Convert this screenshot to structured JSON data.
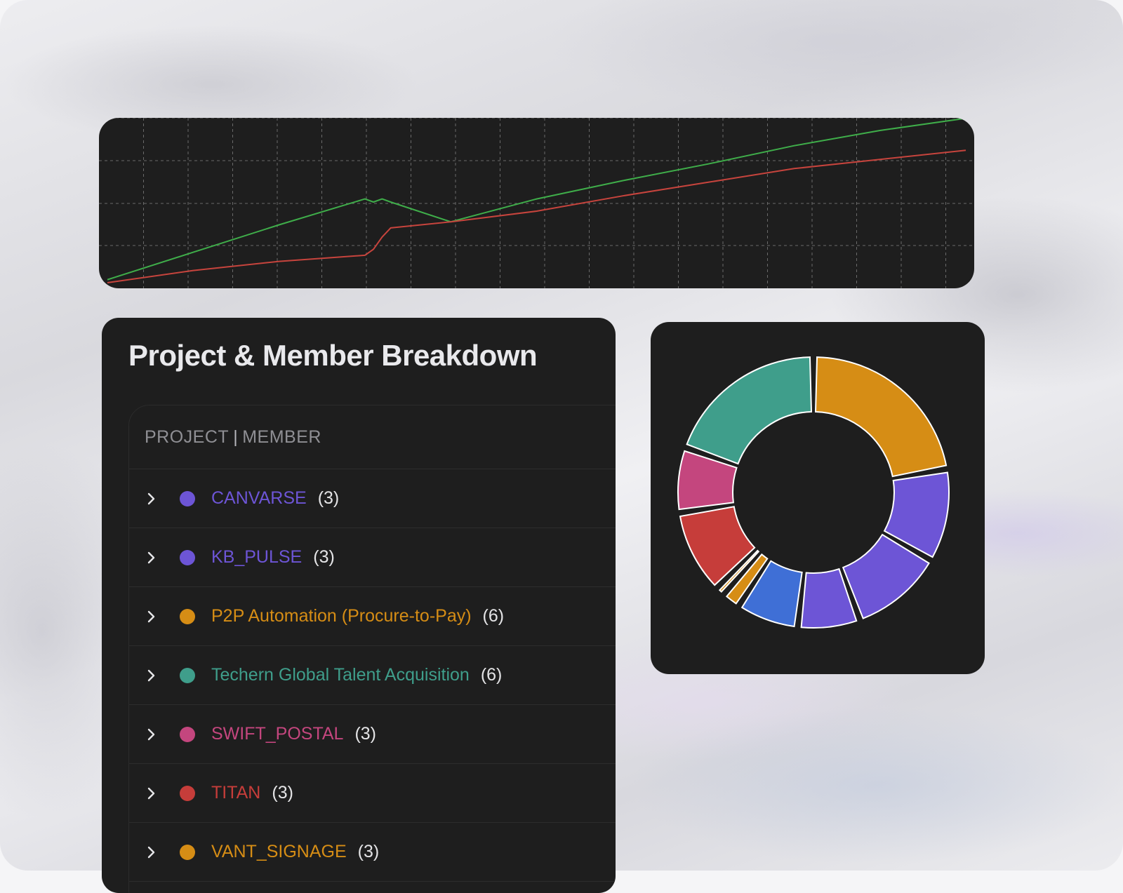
{
  "table": {
    "title": "Project & Member Breakdown",
    "header": {
      "project": "PROJECT",
      "separator": "|",
      "member": "MEMBER"
    },
    "rows": [
      {
        "name": "CANVARSE",
        "count": "(3)",
        "color": "#6d55d6"
      },
      {
        "name": "KB_PULSE",
        "count": "(3)",
        "color": "#6d55d6"
      },
      {
        "name": "P2P Automation (Procure-to-Pay)",
        "count": "(6)",
        "color": "#d68d15"
      },
      {
        "name": "Techern Global Talent Acquisition",
        "count": "(6)",
        "color": "#3f9e8b"
      },
      {
        "name": "SWIFT_POSTAL",
        "count": "(3)",
        "color": "#c4467e"
      },
      {
        "name": "TITAN",
        "count": "(3)",
        "color": "#c63d3a"
      },
      {
        "name": "VANT_SIGNAGE",
        "count": "(3)",
        "color": "#d68d15"
      }
    ],
    "chevron_icon": "chevron-right-icon"
  },
  "chart_data": [
    {
      "type": "line",
      "title": "",
      "xlabel": "",
      "ylabel": "",
      "grid": true,
      "legend": "none",
      "x": [
        0,
        10,
        20,
        30,
        31,
        32,
        33,
        40,
        50,
        60,
        70,
        80,
        90,
        100
      ],
      "xlim": [
        0,
        100
      ],
      "ylim": [
        0,
        100
      ],
      "series": [
        {
          "color": "#3fae4a",
          "values": [
            2,
            20,
            38,
            55,
            53,
            55,
            53,
            40,
            55,
            67,
            78,
            90,
            100,
            108
          ]
        },
        {
          "color": "#c7443d",
          "values": [
            0,
            8,
            14,
            18,
            22,
            30,
            36,
            40,
            47,
            57,
            66,
            75,
            81,
            87
          ]
        }
      ]
    },
    {
      "type": "pie",
      "title": "",
      "legend": "none",
      "donut": true,
      "slices": [
        {
          "value": 6,
          "color": "#d68d15"
        },
        {
          "value": 3,
          "color": "#6d55d6"
        },
        {
          "value": 3,
          "color": "#6d55d6"
        },
        {
          "value": 2,
          "color": "#6d55d6"
        },
        {
          "value": 2,
          "color": "#3f6fd6"
        },
        {
          "value": 0.6,
          "color": "#d68d15"
        },
        {
          "value": 0.3,
          "color": "#d68d15"
        },
        {
          "value": 2.7,
          "color": "#c63d3a"
        },
        {
          "value": 2.1,
          "color": "#c4467e"
        },
        {
          "value": 5.3,
          "color": "#3f9e8b"
        }
      ]
    }
  ]
}
